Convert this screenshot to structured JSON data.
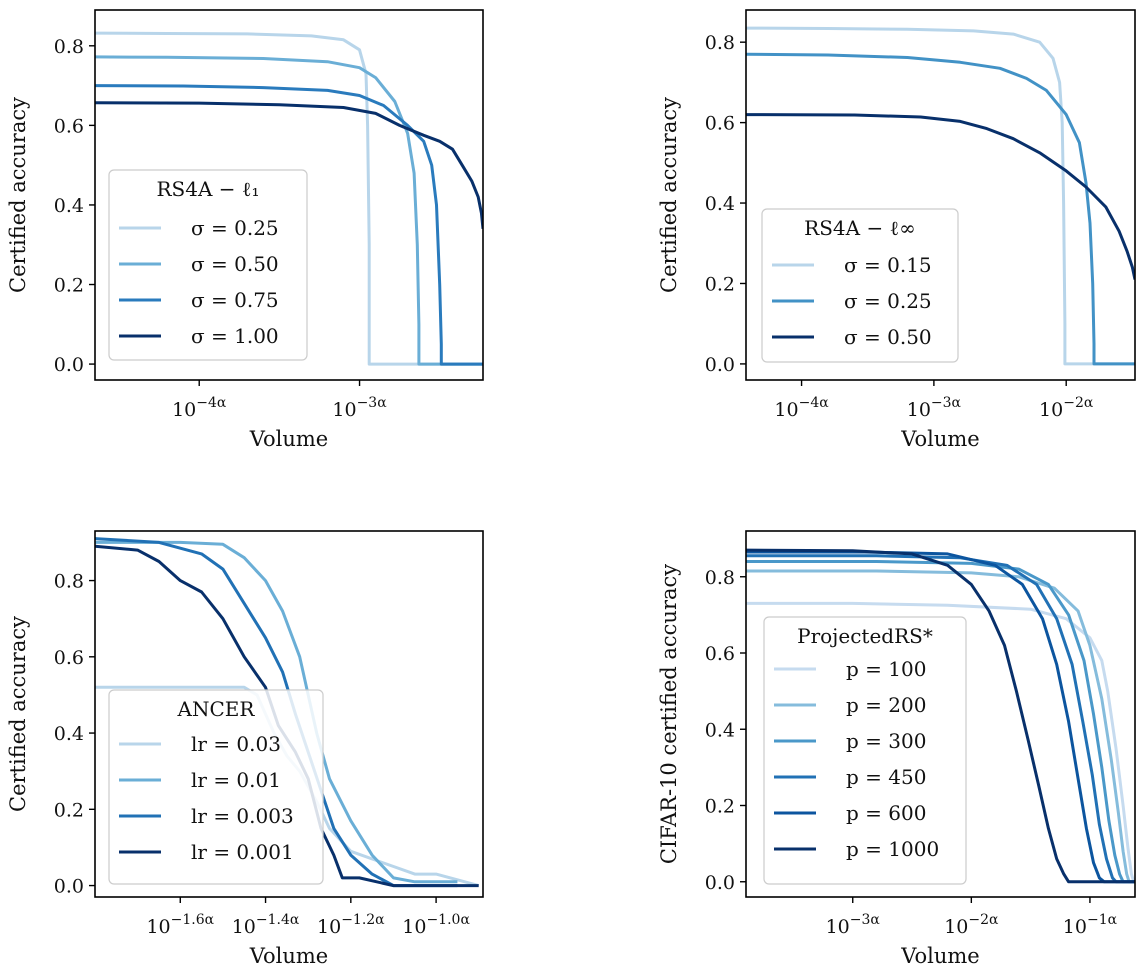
{
  "chart_data": [
    {
      "type": "line",
      "xlabel": "Volume",
      "ylabel": "Certified accuracy",
      "x_scale": "log",
      "xlim": [
        -4.65,
        -2.23
      ],
      "ylim": [
        -0.04,
        0.89
      ],
      "xticks": [
        {
          "value": -4,
          "base": "10",
          "exp": "−4α"
        },
        {
          "value": -3,
          "base": "10",
          "exp": "−3α"
        }
      ],
      "yticks": [
        "0.0",
        "0.2",
        "0.4",
        "0.6",
        "0.8"
      ],
      "legend": {
        "title": "RS4A − ℓ₁",
        "position": "center-left"
      },
      "series": [
        {
          "name": "σ = 0.25",
          "color": "#b8d5ea",
          "x": [
            -4.65,
            -4.2,
            -3.7,
            -3.3,
            -3.1,
            -3.0,
            -2.96,
            -2.95,
            -2.94,
            -2.94,
            -2.23
          ],
          "y": [
            0.832,
            0.831,
            0.83,
            0.825,
            0.815,
            0.79,
            0.73,
            0.6,
            0.3,
            0.0,
            0.0
          ]
        },
        {
          "name": "σ = 0.50",
          "color": "#6aaed6",
          "x": [
            -4.65,
            -4.2,
            -3.6,
            -3.2,
            -3.0,
            -2.9,
            -2.78,
            -2.7,
            -2.66,
            -2.64,
            -2.63,
            -2.63,
            -2.23
          ],
          "y": [
            0.772,
            0.771,
            0.768,
            0.76,
            0.745,
            0.72,
            0.66,
            0.58,
            0.48,
            0.3,
            0.1,
            0.0,
            0.0
          ]
        },
        {
          "name": "σ = 0.75",
          "color": "#2a7bbd",
          "x": [
            -4.65,
            -4.1,
            -3.6,
            -3.2,
            -3.0,
            -2.85,
            -2.7,
            -2.6,
            -2.55,
            -2.52,
            -2.5,
            -2.49,
            -2.49,
            -2.23
          ],
          "y": [
            0.7,
            0.699,
            0.695,
            0.688,
            0.675,
            0.65,
            0.6,
            0.56,
            0.5,
            0.4,
            0.2,
            0.05,
            0.0,
            0.0
          ]
        },
        {
          "name": "σ = 1.00",
          "color": "#08306b",
          "x": [
            -4.65,
            -4.0,
            -3.5,
            -3.1,
            -2.9,
            -2.75,
            -2.6,
            -2.5,
            -2.42,
            -2.36,
            -2.3,
            -2.26,
            -2.24,
            -2.23
          ],
          "y": [
            0.657,
            0.656,
            0.652,
            0.645,
            0.63,
            0.6,
            0.575,
            0.56,
            0.54,
            0.5,
            0.46,
            0.42,
            0.38,
            0.34
          ]
        }
      ]
    },
    {
      "type": "line",
      "xlabel": "Volume",
      "ylabel": "Certified accuracy",
      "x_scale": "log",
      "xlim": [
        -4.42,
        -1.48
      ],
      "ylim": [
        -0.04,
        0.88
      ],
      "xticks": [
        {
          "value": -4,
          "base": "10",
          "exp": "−4α"
        },
        {
          "value": -3,
          "base": "10",
          "exp": "−3α"
        },
        {
          "value": -2,
          "base": "10",
          "exp": "−2α"
        }
      ],
      "yticks": [
        "0.0",
        "0.2",
        "0.4",
        "0.6",
        "0.8"
      ],
      "legend": {
        "title": "RS4A − ℓ∞",
        "position": "bottom-left"
      },
      "series": [
        {
          "name": "σ = 0.15",
          "color": "#b8d5ea",
          "x": [
            -4.42,
            -3.8,
            -3.2,
            -2.7,
            -2.4,
            -2.2,
            -2.1,
            -2.05,
            -2.03,
            -2.02,
            -2.01,
            -2.01,
            -1.48
          ],
          "y": [
            0.835,
            0.834,
            0.832,
            0.828,
            0.82,
            0.8,
            0.76,
            0.7,
            0.6,
            0.4,
            0.1,
            0.0,
            0.0
          ]
        },
        {
          "name": "σ = 0.25",
          "color": "#4292c6",
          "x": [
            -4.42,
            -3.8,
            -3.2,
            -2.8,
            -2.5,
            -2.3,
            -2.15,
            -2.0,
            -1.9,
            -1.85,
            -1.82,
            -1.8,
            -1.79,
            -1.79,
            -1.48
          ],
          "y": [
            0.77,
            0.768,
            0.762,
            0.75,
            0.735,
            0.71,
            0.68,
            0.62,
            0.55,
            0.45,
            0.35,
            0.2,
            0.05,
            0.0,
            0.0
          ]
        },
        {
          "name": "σ = 0.50",
          "color": "#08306b",
          "x": [
            -4.42,
            -3.6,
            -3.1,
            -2.8,
            -2.6,
            -2.4,
            -2.2,
            -2.0,
            -1.85,
            -1.7,
            -1.6,
            -1.54,
            -1.5,
            -1.48
          ],
          "y": [
            0.62,
            0.619,
            0.614,
            0.603,
            0.585,
            0.56,
            0.525,
            0.48,
            0.44,
            0.39,
            0.33,
            0.28,
            0.24,
            0.21
          ]
        }
      ]
    },
    {
      "type": "line",
      "xlabel": "Volume",
      "ylabel": "Certified accuracy",
      "x_scale": "log",
      "xlim": [
        -1.8,
        -0.89
      ],
      "ylim": [
        -0.03,
        0.93
      ],
      "xticks": [
        {
          "value": -1.6,
          "base": "10",
          "exp": "−1.6α"
        },
        {
          "value": -1.4,
          "base": "10",
          "exp": "−1.4α"
        },
        {
          "value": -1.2,
          "base": "10",
          "exp": "−1.2α"
        },
        {
          "value": -1.0,
          "base": "10",
          "exp": "−1.0α"
        }
      ],
      "yticks": [
        "0.0",
        "0.2",
        "0.4",
        "0.6",
        "0.8"
      ],
      "legend": {
        "title": "ANCER",
        "position": "bottom-left"
      },
      "series": [
        {
          "name": "lr = 0.03",
          "color": "#b8d5ea",
          "x": [
            -1.8,
            -1.6,
            -1.5,
            -1.45,
            -1.42,
            -1.4,
            -1.38,
            -1.35,
            -1.32,
            -1.28,
            -1.25,
            -1.2,
            -1.1,
            -1.05,
            -1.0,
            -0.9
          ],
          "y": [
            0.52,
            0.52,
            0.52,
            0.52,
            0.5,
            0.45,
            0.4,
            0.34,
            0.3,
            0.22,
            0.15,
            0.09,
            0.05,
            0.03,
            0.03,
            0.0
          ]
        },
        {
          "name": "lr = 0.01",
          "color": "#6aaed6",
          "x": [
            -1.8,
            -1.6,
            -1.5,
            -1.45,
            -1.4,
            -1.36,
            -1.32,
            -1.3,
            -1.28,
            -1.25,
            -1.2,
            -1.15,
            -1.1,
            -1.05,
            -0.95
          ],
          "y": [
            0.9,
            0.9,
            0.895,
            0.86,
            0.8,
            0.72,
            0.6,
            0.5,
            0.4,
            0.28,
            0.17,
            0.08,
            0.02,
            0.01,
            0.01
          ]
        },
        {
          "name": "lr = 0.003",
          "color": "#2171b5",
          "x": [
            -1.8,
            -1.65,
            -1.55,
            -1.5,
            -1.45,
            -1.4,
            -1.36,
            -1.33,
            -1.3,
            -1.27,
            -1.24,
            -1.2,
            -1.15,
            -1.1,
            -0.95
          ],
          "y": [
            0.91,
            0.9,
            0.87,
            0.83,
            0.74,
            0.65,
            0.56,
            0.45,
            0.35,
            0.25,
            0.15,
            0.08,
            0.03,
            0.0,
            0.0
          ]
        },
        {
          "name": "lr = 0.001",
          "color": "#08306b",
          "x": [
            -1.8,
            -1.7,
            -1.65,
            -1.6,
            -1.55,
            -1.5,
            -1.45,
            -1.4,
            -1.37,
            -1.33,
            -1.3,
            -1.27,
            -1.24,
            -1.22,
            -1.18,
            -1.1,
            -0.9
          ],
          "y": [
            0.89,
            0.88,
            0.85,
            0.8,
            0.77,
            0.7,
            0.6,
            0.52,
            0.42,
            0.35,
            0.28,
            0.15,
            0.08,
            0.02,
            0.02,
            0.0,
            0.0
          ]
        }
      ]
    },
    {
      "type": "line",
      "xlabel": "Volume",
      "ylabel": "CIFAR-10 certified accuracy",
      "x_scale": "log",
      "xlim": [
        -3.9,
        -0.62
      ],
      "ylim": [
        -0.04,
        0.92
      ],
      "xticks": [
        {
          "value": -3,
          "base": "10",
          "exp": "−3α"
        },
        {
          "value": -2,
          "base": "10",
          "exp": "−2α"
        },
        {
          "value": -1,
          "base": "10",
          "exp": "−1α"
        }
      ],
      "yticks": [
        "0.0",
        "0.2",
        "0.4",
        "0.6",
        "0.8"
      ],
      "legend": {
        "title": "ProjectedRS*",
        "position": "center-left"
      },
      "series": [
        {
          "name": "p = 100",
          "color": "#c6dbef",
          "x": [
            -3.9,
            -3.0,
            -2.2,
            -1.5,
            -1.2,
            -1.0,
            -0.9,
            -0.85,
            -0.78,
            -0.72,
            -0.68,
            -0.65,
            -0.63,
            -0.62
          ],
          "y": [
            0.73,
            0.73,
            0.725,
            0.715,
            0.69,
            0.64,
            0.58,
            0.5,
            0.35,
            0.2,
            0.09,
            0.02,
            0.0,
            0.0
          ]
        },
        {
          "name": "p = 200",
          "color": "#85bcdc",
          "x": [
            -3.9,
            -2.8,
            -2.0,
            -1.6,
            -1.3,
            -1.1,
            -1.0,
            -0.9,
            -0.82,
            -0.76,
            -0.72,
            -0.69,
            -0.67,
            -0.62
          ],
          "y": [
            0.815,
            0.815,
            0.81,
            0.8,
            0.77,
            0.71,
            0.62,
            0.48,
            0.32,
            0.18,
            0.08,
            0.02,
            0.0,
            0.0
          ]
        },
        {
          "name": "p = 300",
          "color": "#4a98c9",
          "x": [
            -3.9,
            -2.8,
            -2.0,
            -1.6,
            -1.35,
            -1.18,
            -1.05,
            -0.97,
            -0.9,
            -0.84,
            -0.79,
            -0.75,
            -0.72,
            -0.62
          ],
          "y": [
            0.84,
            0.84,
            0.835,
            0.82,
            0.78,
            0.7,
            0.58,
            0.44,
            0.3,
            0.16,
            0.07,
            0.02,
            0.0,
            0.0
          ]
        },
        {
          "name": "p = 450",
          "color": "#2171b5",
          "x": [
            -3.9,
            -2.8,
            -2.1,
            -1.7,
            -1.45,
            -1.28,
            -1.15,
            -1.06,
            -0.98,
            -0.92,
            -0.86,
            -0.81,
            -0.78,
            -0.62
          ],
          "y": [
            0.855,
            0.855,
            0.85,
            0.83,
            0.78,
            0.69,
            0.57,
            0.42,
            0.28,
            0.15,
            0.06,
            0.01,
            0.0,
            0.0
          ]
        },
        {
          "name": "p = 600",
          "color": "#0c559f",
          "x": [
            -3.9,
            -2.9,
            -2.2,
            -1.8,
            -1.57,
            -1.4,
            -1.28,
            -1.18,
            -1.1,
            -1.03,
            -0.97,
            -0.92,
            -0.88,
            -0.62
          ],
          "y": [
            0.865,
            0.865,
            0.86,
            0.83,
            0.78,
            0.69,
            0.57,
            0.42,
            0.27,
            0.14,
            0.05,
            0.01,
            0.0,
            0.0
          ]
        },
        {
          "name": "p = 1000",
          "color": "#08306b",
          "x": [
            -3.9,
            -3.0,
            -2.5,
            -2.2,
            -2.0,
            -1.85,
            -1.72,
            -1.62,
            -1.52,
            -1.43,
            -1.35,
            -1.28,
            -1.22,
            -1.18,
            -1.15,
            -0.62
          ],
          "y": [
            0.87,
            0.868,
            0.86,
            0.83,
            0.78,
            0.71,
            0.62,
            0.5,
            0.37,
            0.25,
            0.14,
            0.06,
            0.02,
            0.0,
            0.0,
            0.0
          ]
        }
      ]
    }
  ]
}
